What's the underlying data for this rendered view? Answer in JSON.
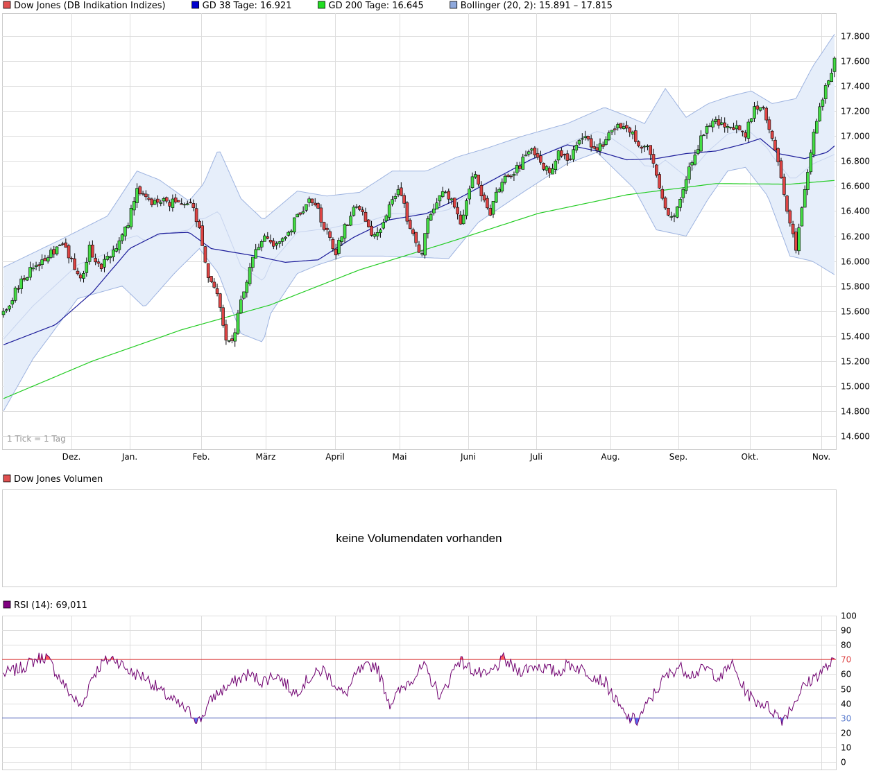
{
  "main_chart": {
    "legend": [
      {
        "label": "Dow Jones (DB Indikation Indizes)",
        "color": "#e05050"
      },
      {
        "label": "GD 38 Tage: 16.921",
        "color": "#0000cc"
      },
      {
        "label": "GD 200 Tage: 16.645",
        "color": "#22dd22"
      },
      {
        "label": "Bollinger (20, 2): 15.891 – 17.815",
        "color": "#8ea8dc"
      }
    ],
    "note": "1 Tick = 1 Tag"
  },
  "volume_panel": {
    "legend_label": "Dow Jones Volumen",
    "legend_color": "#e05050",
    "message": "keine Volumendaten vorhanden"
  },
  "rsi_panel": {
    "legend_label": "RSI (14): 69,011",
    "legend_color": "#800080",
    "level_high_label": "70",
    "level_low_label": "30"
  },
  "colors": {
    "up_candle": "#44dd44",
    "down_candle": "#dd4444",
    "ma38": "#1a1a99",
    "ma200": "#22cc22",
    "bollinger_fill": "#e6eefa",
    "bollinger_line": "#9db3e0",
    "rsi_line": "#700070",
    "grid": "#dddddd"
  },
  "chart_data": [
    {
      "type": "candlestick",
      "title": "Dow Jones (DB Indikation Indizes)",
      "x_ticks": [
        "Dez.",
        "Jan.",
        "Feb.",
        "März",
        "April",
        "Mai",
        "Juni",
        "Juli",
        "Aug.",
        "Sep.",
        "Okt.",
        "Nov."
      ],
      "y_ticks": [
        "14.600",
        "14.800",
        "15.000",
        "15.200",
        "15.400",
        "15.600",
        "15.800",
        "16.000",
        "16.200",
        "16.400",
        "16.600",
        "16.800",
        "17.000",
        "17.200",
        "17.400",
        "17.600",
        "17.800"
      ],
      "ylim": [
        14500,
        18000
      ],
      "grid": true,
      "price_path": [
        [
          0,
          15570
        ],
        [
          12,
          15850
        ],
        [
          30,
          16050
        ],
        [
          40,
          16150
        ],
        [
          52,
          15850
        ],
        [
          58,
          16100
        ],
        [
          65,
          15950
        ],
        [
          77,
          16100
        ],
        [
          85,
          16350
        ],
        [
          90,
          16550
        ],
        [
          98,
          16470
        ],
        [
          110,
          16480
        ],
        [
          120,
          16450
        ],
        [
          126,
          16480
        ],
        [
          132,
          16250
        ],
        [
          138,
          15900
        ],
        [
          145,
          15700
        ],
        [
          150,
          15400
        ],
        [
          155,
          15380
        ],
        [
          160,
          15700
        ],
        [
          165,
          15900
        ],
        [
          170,
          16070
        ],
        [
          176,
          16200
        ],
        [
          182,
          16100
        ],
        [
          190,
          16200
        ],
        [
          198,
          16350
        ],
        [
          205,
          16480
        ],
        [
          212,
          16400
        ],
        [
          218,
          16220
        ],
        [
          224,
          16070
        ],
        [
          230,
          16260
        ],
        [
          237,
          16440
        ],
        [
          244,
          16330
        ],
        [
          250,
          16180
        ],
        [
          255,
          16300
        ],
        [
          262,
          16480
        ],
        [
          267,
          16580
        ],
        [
          273,
          16300
        ],
        [
          278,
          16150
        ],
        [
          282,
          16050
        ],
        [
          286,
          16350
        ],
        [
          290,
          16420
        ],
        [
          296,
          16550
        ],
        [
          302,
          16480
        ],
        [
          308,
          16300
        ],
        [
          314,
          16600
        ],
        [
          318,
          16700
        ],
        [
          322,
          16540
        ],
        [
          328,
          16400
        ],
        [
          332,
          16580
        ],
        [
          338,
          16650
        ],
        [
          344,
          16700
        ],
        [
          350,
          16800
        ],
        [
          356,
          16900
        ],
        [
          362,
          16780
        ],
        [
          368,
          16730
        ],
        [
          374,
          16850
        ],
        [
          380,
          16820
        ],
        [
          386,
          16900
        ],
        [
          392,
          17000
        ],
        [
          398,
          16900
        ],
        [
          404,
          16950
        ],
        [
          410,
          17050
        ],
        [
          416,
          17080
        ],
        [
          422,
          17060
        ],
        [
          428,
          16920
        ],
        [
          434,
          16950
        ],
        [
          440,
          16700
        ],
        [
          446,
          16400
        ],
        [
          452,
          16350
        ],
        [
          458,
          16600
        ],
        [
          464,
          16780
        ],
        [
          470,
          17000
        ],
        [
          476,
          17100
        ],
        [
          482,
          17100
        ],
        [
          488,
          17080
        ],
        [
          494,
          17050
        ],
        [
          500,
          17000
        ],
        [
          506,
          17250
        ],
        [
          512,
          17200
        ],
        [
          518,
          16950
        ],
        [
          522,
          16800
        ],
        [
          526,
          16550
        ],
        [
          530,
          16300
        ],
        [
          534,
          16100
        ],
        [
          538,
          16450
        ],
        [
          542,
          16700
        ],
        [
          546,
          17000
        ],
        [
          550,
          17250
        ],
        [
          556,
          17450
        ],
        [
          560,
          17610
        ]
      ],
      "ma38_path": [
        [
          0,
          15330
        ],
        [
          35,
          15490
        ],
        [
          60,
          15750
        ],
        [
          85,
          16100
        ],
        [
          105,
          16220
        ],
        [
          125,
          16230
        ],
        [
          140,
          16100
        ],
        [
          155,
          16070
        ],
        [
          170,
          16040
        ],
        [
          190,
          15990
        ],
        [
          212,
          16010
        ],
        [
          236,
          16190
        ],
        [
          260,
          16330
        ],
        [
          285,
          16380
        ],
        [
          305,
          16490
        ],
        [
          330,
          16650
        ],
        [
          355,
          16810
        ],
        [
          380,
          16930
        ],
        [
          400,
          16880
        ],
        [
          420,
          16810
        ],
        [
          440,
          16820
        ],
        [
          460,
          16860
        ],
        [
          480,
          16880
        ],
        [
          500,
          16940
        ],
        [
          510,
          16980
        ],
        [
          522,
          16860
        ],
        [
          540,
          16820
        ],
        [
          555,
          16870
        ],
        [
          560,
          16921
        ]
      ],
      "ma200_path": [
        [
          0,
          14900
        ],
        [
          60,
          15200
        ],
        [
          120,
          15450
        ],
        [
          180,
          15650
        ],
        [
          240,
          15930
        ],
        [
          300,
          16150
        ],
        [
          360,
          16380
        ],
        [
          420,
          16530
        ],
        [
          480,
          16620
        ],
        [
          530,
          16615
        ],
        [
          560,
          16645
        ]
      ],
      "bollinger_upper_path": [
        [
          0,
          15950
        ],
        [
          40,
          16180
        ],
        [
          70,
          16360
        ],
        [
          90,
          16720
        ],
        [
          105,
          16650
        ],
        [
          125,
          16480
        ],
        [
          135,
          16620
        ],
        [
          145,
          16900
        ],
        [
          160,
          16500
        ],
        [
          175,
          16330
        ],
        [
          198,
          16560
        ],
        [
          218,
          16520
        ],
        [
          240,
          16550
        ],
        [
          262,
          16720
        ],
        [
          285,
          16720
        ],
        [
          305,
          16830
        ],
        [
          325,
          16900
        ],
        [
          350,
          17000
        ],
        [
          380,
          17100
        ],
        [
          405,
          17230
        ],
        [
          420,
          17160
        ],
        [
          432,
          17100
        ],
        [
          446,
          17380
        ],
        [
          460,
          17150
        ],
        [
          475,
          17260
        ],
        [
          490,
          17320
        ],
        [
          504,
          17360
        ],
        [
          518,
          17260
        ],
        [
          534,
          17300
        ],
        [
          545,
          17550
        ],
        [
          560,
          17815
        ]
      ],
      "bollinger_lower_path": [
        [
          0,
          14800
        ],
        [
          20,
          15220
        ],
        [
          50,
          15700
        ],
        [
          80,
          15800
        ],
        [
          95,
          15630
        ],
        [
          115,
          15900
        ],
        [
          132,
          16100
        ],
        [
          145,
          15900
        ],
        [
          160,
          15420
        ],
        [
          175,
          15350
        ],
        [
          180,
          15580
        ],
        [
          198,
          15900
        ],
        [
          212,
          15970
        ],
        [
          230,
          16040
        ],
        [
          255,
          16040
        ],
        [
          280,
          16030
        ],
        [
          300,
          16020
        ],
        [
          320,
          16310
        ],
        [
          350,
          16550
        ],
        [
          380,
          16780
        ],
        [
          400,
          16870
        ],
        [
          425,
          16580
        ],
        [
          440,
          16250
        ],
        [
          460,
          16200
        ],
        [
          475,
          16500
        ],
        [
          488,
          16720
        ],
        [
          500,
          16750
        ],
        [
          515,
          16520
        ],
        [
          530,
          16040
        ],
        [
          545,
          16000
        ],
        [
          560,
          15891
        ]
      ]
    },
    {
      "type": "line",
      "title": "RSI (14): 69,011",
      "y_ticks": [
        "0",
        "10",
        "20",
        "30",
        "40",
        "50",
        "60",
        "70",
        "80",
        "90",
        "100"
      ],
      "ylim": [
        0,
        100
      ],
      "reference_lines": [
        70,
        30
      ],
      "grid": true,
      "rsi_path": [
        [
          0,
          60
        ],
        [
          12,
          64
        ],
        [
          25,
          71
        ],
        [
          30,
          72
        ],
        [
          45,
          49
        ],
        [
          55,
          37
        ],
        [
          62,
          58
        ],
        [
          70,
          68
        ],
        [
          78,
          71
        ],
        [
          90,
          61
        ],
        [
          100,
          58
        ],
        [
          112,
          47
        ],
        [
          122,
          40
        ],
        [
          132,
          33
        ],
        [
          138,
          28
        ],
        [
          148,
          45
        ],
        [
          160,
          53
        ],
        [
          172,
          60
        ],
        [
          182,
          55
        ],
        [
          192,
          60
        ],
        [
          205,
          47
        ],
        [
          215,
          57
        ],
        [
          225,
          63
        ],
        [
          232,
          55
        ],
        [
          240,
          45
        ],
        [
          250,
          62
        ],
        [
          262,
          67
        ],
        [
          272,
          40
        ],
        [
          285,
          55
        ],
        [
          296,
          65
        ],
        [
          308,
          44
        ],
        [
          320,
          70
        ],
        [
          330,
          63
        ],
        [
          340,
          58
        ],
        [
          352,
          70
        ],
        [
          362,
          62
        ],
        [
          375,
          66
        ],
        [
          390,
          61
        ],
        [
          398,
          67
        ],
        [
          410,
          62
        ],
        [
          424,
          54
        ],
        [
          432,
          40
        ],
        [
          438,
          31
        ],
        [
          446,
          28
        ],
        [
          455,
          42
        ],
        [
          465,
          57
        ],
        [
          475,
          65
        ],
        [
          485,
          60
        ],
        [
          495,
          64
        ],
        [
          505,
          57
        ],
        [
          512,
          68
        ],
        [
          520,
          52
        ],
        [
          528,
          42
        ],
        [
          535,
          40
        ],
        [
          545,
          32
        ],
        [
          548,
          29
        ],
        [
          555,
          38
        ],
        [
          562,
          50
        ],
        [
          572,
          59
        ],
        [
          585,
          69
        ]
      ]
    }
  ]
}
